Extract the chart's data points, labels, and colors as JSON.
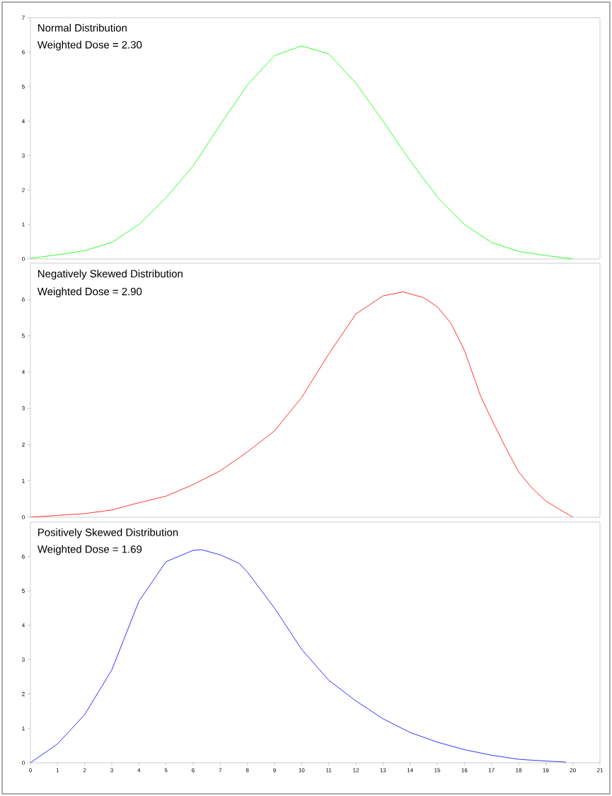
{
  "chart_data": [
    {
      "type": "line",
      "title": "Normal Distribution",
      "subtitle": "Weighted Dose = 2.30",
      "color": "#00ff00",
      "x": [
        0,
        1,
        2,
        3,
        4,
        5,
        6,
        7,
        8,
        9,
        10,
        11,
        12,
        13,
        14,
        15,
        16,
        17,
        18,
        19,
        20
      ],
      "values": [
        0.02,
        0.12,
        0.24,
        0.48,
        1.0,
        1.78,
        2.7,
        3.9,
        5.05,
        5.9,
        6.18,
        5.95,
        5.1,
        4.0,
        2.85,
        1.8,
        1.0,
        0.48,
        0.22,
        0.1,
        0.0
      ],
      "xlim": [
        0,
        21
      ],
      "ylim": [
        0,
        7
      ],
      "xticks": [
        0,
        1,
        2,
        3,
        4,
        5,
        6,
        7,
        8,
        9,
        10,
        11,
        12,
        13,
        14,
        15,
        16,
        17,
        18,
        19,
        20,
        21
      ],
      "yticks": [
        0,
        1,
        2,
        3,
        4,
        5,
        6,
        7
      ],
      "tick_labels": "y"
    },
    {
      "type": "line",
      "title": "Negatively Skewed Distribution",
      "subtitle": "Weighted Dose = 2.90",
      "color": "#ff0000",
      "x": [
        0,
        1,
        2,
        3,
        4,
        5,
        6,
        7,
        8,
        9,
        10,
        11,
        12,
        13,
        13.75,
        14.5,
        15,
        15.5,
        16,
        16.6,
        17,
        17.5,
        18,
        18.5,
        19,
        19.5,
        20
      ],
      "values": [
        0.0,
        0.05,
        0.1,
        0.2,
        0.4,
        0.58,
        0.9,
        1.28,
        1.8,
        2.38,
        3.3,
        4.5,
        5.6,
        6.1,
        6.21,
        6.05,
        5.8,
        5.35,
        4.6,
        3.34,
        2.7,
        1.95,
        1.25,
        0.8,
        0.45,
        0.22,
        0.0
      ],
      "xlim": [
        0,
        21
      ],
      "ylim": [
        0,
        7
      ],
      "xticks": [
        0,
        1,
        2,
        3,
        4,
        5,
        6,
        7,
        8,
        9,
        10,
        11,
        12,
        13,
        14,
        15,
        16,
        17,
        18,
        19,
        20,
        21
      ],
      "yticks": [
        0,
        1,
        2,
        3,
        4,
        5,
        6
      ],
      "tick_labels": "y"
    },
    {
      "type": "line",
      "title": "Positively Skewed Distribution",
      "subtitle": "Weighted Dose = 1.69",
      "color": "#0000ff",
      "x": [
        0,
        1,
        2,
        3,
        4,
        5,
        6,
        6.3,
        7,
        7.7,
        8,
        9,
        10,
        11,
        12,
        13,
        14,
        15,
        16,
        17,
        18,
        19,
        19.75
      ],
      "values": [
        0,
        0.55,
        1.4,
        2.7,
        4.7,
        5.85,
        6.18,
        6.2,
        6.05,
        5.8,
        5.55,
        4.5,
        3.3,
        2.4,
        1.8,
        1.28,
        0.88,
        0.6,
        0.38,
        0.22,
        0.1,
        0.05,
        0.02
      ],
      "xlim": [
        0,
        21
      ],
      "ylim": [
        0,
        7
      ],
      "xticks": [
        0,
        1,
        2,
        3,
        4,
        5,
        6,
        7,
        8,
        9,
        10,
        11,
        12,
        13,
        14,
        15,
        16,
        17,
        18,
        19,
        20,
        21
      ],
      "yticks": [
        0,
        1,
        2,
        3,
        4,
        5,
        6
      ]
    }
  ]
}
